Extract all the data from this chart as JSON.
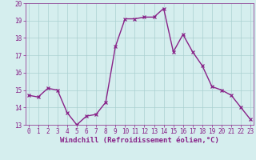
{
  "x": [
    0,
    1,
    2,
    3,
    4,
    5,
    6,
    7,
    8,
    9,
    10,
    11,
    12,
    13,
    14,
    15,
    16,
    17,
    18,
    19,
    20,
    21,
    22,
    23
  ],
  "y": [
    14.7,
    14.6,
    15.1,
    15.0,
    13.7,
    13.0,
    13.5,
    13.6,
    14.3,
    17.5,
    19.1,
    19.1,
    19.2,
    19.2,
    19.7,
    17.2,
    18.2,
    17.2,
    16.4,
    15.2,
    15.0,
    14.7,
    14.0,
    13.3
  ],
  "line_color": "#882288",
  "marker": "x",
  "marker_size": 3,
  "xlabel": "Windchill (Refroidissement éolien,°C)",
  "xlabel_fontsize": 6.5,
  "ylim": [
    13,
    20
  ],
  "yticks": [
    13,
    14,
    15,
    16,
    17,
    18,
    19,
    20
  ],
  "xticks": [
    0,
    1,
    2,
    3,
    4,
    5,
    6,
    7,
    8,
    9,
    10,
    11,
    12,
    13,
    14,
    15,
    16,
    17,
    18,
    19,
    20,
    21,
    22,
    23
  ],
  "background_color": "#d5eeee",
  "grid_color": "#aad0d0",
  "tick_fontsize": 5.5,
  "tick_color": "#882288",
  "line_width": 1.0,
  "xlim": [
    -0.3,
    23.3
  ]
}
